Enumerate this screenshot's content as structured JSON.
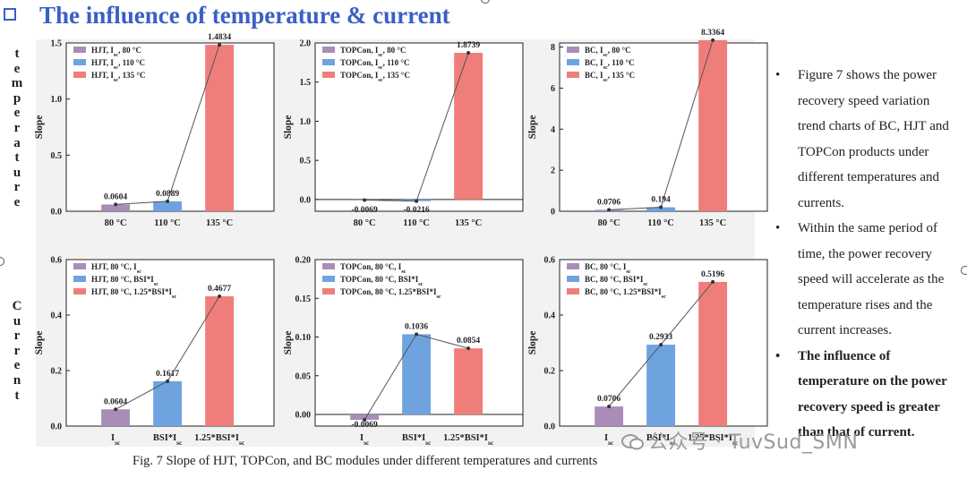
{
  "title": "The influence of temperature & current",
  "row_labels": {
    "temperature": [
      "t",
      "e",
      "m",
      "p",
      "e",
      "r",
      "a",
      "t",
      "u",
      "r",
      "e"
    ],
    "current": [
      "C",
      "u",
      "r",
      "r",
      "e",
      "n",
      "t"
    ]
  },
  "caption": "Fig. 7  Slope of HJT, TOPCon, and BC modules under different temperatures and currents",
  "bullets": [
    {
      "text": "Figure 7 shows the power recovery speed variation trend charts of BC, HJT and TOPCon products under different temperatures and currents.",
      "bold": false
    },
    {
      "text": "Within the same period of time, the power recovery speed will accelerate as the temperature rises and the current increases.",
      "bold": false
    },
    {
      "text": "The influence of temperature on the power recovery speed is greater than that of current.",
      "bold": true
    }
  ],
  "bullet_symbol": "•",
  "watermark": "公众号 · TuvSud_SMN",
  "colors": {
    "title": "#3b5fc4",
    "purple": "#a98db8",
    "blue": "#6fa3e0",
    "red": "#ef7e7a",
    "line": "#555555"
  },
  "chart_data": [
    {
      "type": "bar",
      "ylabel": "Slope",
      "categories": [
        "80 °C",
        "110 °C",
        "135 °C"
      ],
      "values": [
        0.0604,
        0.0889,
        1.4834
      ],
      "labels": [
        "0.0604",
        "0.0889",
        "1.4834"
      ],
      "legend": [
        "HJT, I_sc, 80 °C",
        "HJT, I_sc, 110 °C",
        "HJT, I_sc, 135 °C"
      ],
      "ylim": [
        0,
        1.5
      ],
      "yticks": [
        "0.0",
        "0.5",
        "1.0",
        "1.5"
      ],
      "ytick_values": [
        0,
        0.5,
        1.0,
        1.5
      ]
    },
    {
      "type": "bar",
      "ylabel": "Slope",
      "categories": [
        "80 °C",
        "110 °C",
        "135 °C"
      ],
      "values": [
        -0.0069,
        -0.0216,
        1.8739
      ],
      "labels": [
        "-0.0069",
        "-0.0216",
        "1.8739"
      ],
      "legend": [
        "TOPCon, I_sc, 80 °C",
        "TOPCon, I_sc, 110 °C",
        "TOPCon, I_sc, 135 °C"
      ],
      "ylim": [
        -0.15,
        2.0
      ],
      "yticks": [
        "0.0",
        "0.5",
        "1.0",
        "1.5",
        "2.0"
      ],
      "ytick_values": [
        0,
        0.5,
        1.0,
        1.5,
        2.0
      ]
    },
    {
      "type": "bar",
      "ylabel": "Slope",
      "categories": [
        "80 °C",
        "110 °C",
        "135 °C"
      ],
      "values": [
        0.0706,
        0.194,
        8.3364
      ],
      "labels": [
        "0.0706",
        "0.194",
        "8.3364"
      ],
      "legend": [
        "BC, I_sc, 80 °C",
        "BC, I_sc, 110 °C",
        "BC, I_sc, 135 °C"
      ],
      "ylim": [
        0,
        8.2
      ],
      "yticks": [
        "0",
        "2",
        "4",
        "6",
        "8"
      ],
      "ytick_values": [
        0,
        2,
        4,
        6,
        8
      ]
    },
    {
      "type": "bar",
      "ylabel": "Slope",
      "categories": [
        "I_sc",
        "BSI*I_sc",
        "1.25*BSI*I_sc"
      ],
      "values": [
        0.0604,
        0.1617,
        0.4677
      ],
      "labels": [
        "0.0604",
        "0.1617",
        "0.4677"
      ],
      "legend": [
        "HJT, 80 °C, I_sc",
        "HJT, 80 °C, BSI*I_sc",
        "HJT, 80 °C, 1.25*BSI*I_sc"
      ],
      "ylim": [
        0,
        0.6
      ],
      "yticks": [
        "0.0",
        "0.2",
        "0.4",
        "0.6"
      ],
      "ytick_values": [
        0,
        0.2,
        0.4,
        0.6
      ]
    },
    {
      "type": "bar",
      "ylabel": "Slope",
      "categories": [
        "I_sc",
        "BSI*I_sc",
        "1.25*BSI*I_sc"
      ],
      "values": [
        -0.0069,
        0.1036,
        0.0854
      ],
      "labels": [
        "-0.0069",
        "0.1036",
        "0.0854"
      ],
      "legend": [
        "TOPCon, 80 °C, I_sc",
        "TOPCon, 80 °C, BSI*I_sc",
        "TOPCon, 80 °C, 1.25*BSI*I_sc"
      ],
      "ylim": [
        -0.015,
        0.2
      ],
      "yticks": [
        "0.00",
        "0.05",
        "0.10",
        "0.15",
        "0.20"
      ],
      "ytick_values": [
        0,
        0.05,
        0.1,
        0.15,
        0.2
      ]
    },
    {
      "type": "bar",
      "ylabel": "Slope",
      "categories": [
        "I_sc",
        "BSI*I_sc",
        "1.25*BSI*I_sc"
      ],
      "values": [
        0.0706,
        0.2933,
        0.5196
      ],
      "labels": [
        "0.0706",
        "0.2933",
        "0.5196"
      ],
      "legend": [
        "BC, 80 °C, I_sc",
        "BC, 80 °C, BSI*I_sc",
        "BC, 80 °C, 1.25*BSI*I_sc"
      ],
      "ylim": [
        0,
        0.6
      ],
      "yticks": [
        "0.0",
        "0.2",
        "0.4",
        "0.6"
      ],
      "ytick_values": [
        0,
        0.2,
        0.4,
        0.6
      ]
    }
  ]
}
